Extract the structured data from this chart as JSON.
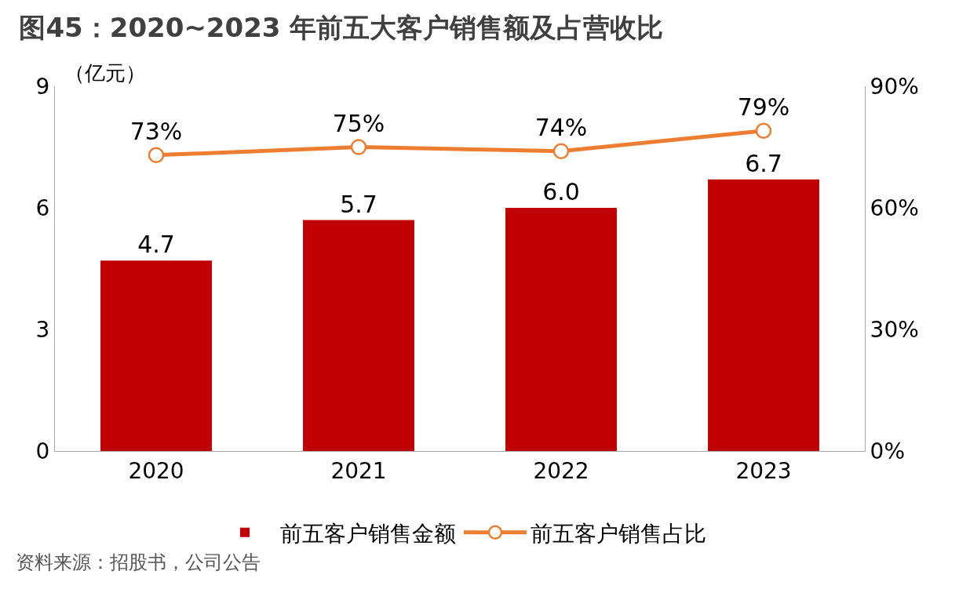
{
  "chart_data": {
    "type": "bar",
    "title": "图45：2020~2023 年前五大客户销售额及占营收比",
    "ylabel": "（亿元）",
    "categories": [
      "2020",
      "2021",
      "2022",
      "2023"
    ],
    "series": [
      {
        "name": "前五客户销售金额",
        "color": "#c00000",
        "values": [
          4.7,
          5.7,
          6.0,
          6.7
        ],
        "value_labels": [
          "4.7",
          "5.7",
          "6.0",
          "6.7"
        ]
      },
      {
        "name": "前五客户销售占比",
        "type": "line",
        "axis": "y2",
        "color": "#ed7d31",
        "marker": "circle",
        "line_style": "solid",
        "values": [
          73,
          75,
          74,
          79
        ],
        "value_labels": [
          "73%",
          "75%",
          "74%",
          "79%"
        ]
      }
    ],
    "ylim": [
      0,
      9
    ],
    "yticks": [
      0,
      3,
      6,
      9
    ],
    "y2lim": [
      0,
      90
    ],
    "y2ticks": [
      {
        "value": 0,
        "label": "0%"
      },
      {
        "value": 30,
        "label": "30%"
      },
      {
        "value": 60,
        "label": "60%"
      },
      {
        "value": 90,
        "label": "90%"
      }
    ],
    "grid": false,
    "legend": "bottom",
    "annotations": [
      "资料来源：招股书，公司公告"
    ]
  }
}
